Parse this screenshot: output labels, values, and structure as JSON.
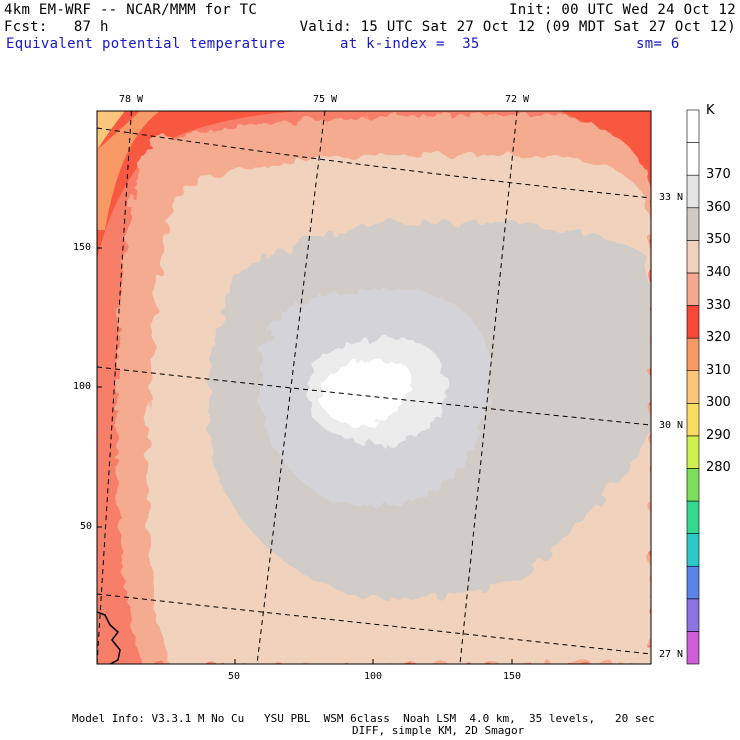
{
  "header": {
    "line1_left": "4km EM-WRF -- NCAR/MMM for TC",
    "line1_right": "Init: 00 UTC Wed 24 Oct 12",
    "line2_left": "Fcst:   87 h",
    "line2_right": "Valid: 15 UTC Sat 27 Oct 12 (09 MDT Sat 27 Oct 12)",
    "line3_field": "Equivalent potential temperature",
    "line3_level": "at k-index =  35",
    "line3_smooth": "sm= 6"
  },
  "map": {
    "longitude_labels": [
      "78 W",
      "75 W",
      "72 W"
    ],
    "latitude_labels": [
      "33 N",
      "30 N",
      "27 N"
    ],
    "x_tick_labels": [
      "50",
      "100",
      "150"
    ],
    "y_tick_labels": [
      "150",
      "100",
      "50"
    ],
    "field_colors": {
      "outer_ring": "#f77f6a",
      "inner_ring": "#f5ab8f",
      "background": "#f1d2bd",
      "gray_band": "#d2ccc8",
      "light_gray": "#d2d2d6",
      "pale": "#ececec",
      "core": "#ffffff"
    }
  },
  "colorbar": {
    "unit": "K",
    "labels": [
      "370",
      "360",
      "350",
      "340",
      "330",
      "320",
      "310",
      "300",
      "290",
      "280"
    ],
    "colors": [
      "#ce5ed8",
      "#8c74e0",
      "#5a84e8",
      "#2ec8c8",
      "#34d890",
      "#7ee05a",
      "#cff050",
      "#f9dc64",
      "#f9c67c",
      "#f79a66",
      "#f8483a",
      "#f5a890",
      "#f0d2be",
      "#d0cac6",
      "#e4e4e4",
      "#ffffff",
      "#ffffff"
    ]
  },
  "footer": {
    "line1": "Model Info: V3.3.1 M No Cu   YSU PBL  WSM 6class  Noah LSM  4.0 km,  35 levels,   20 sec",
    "line2": "DIFF, simple KM, 2D Smagor"
  }
}
